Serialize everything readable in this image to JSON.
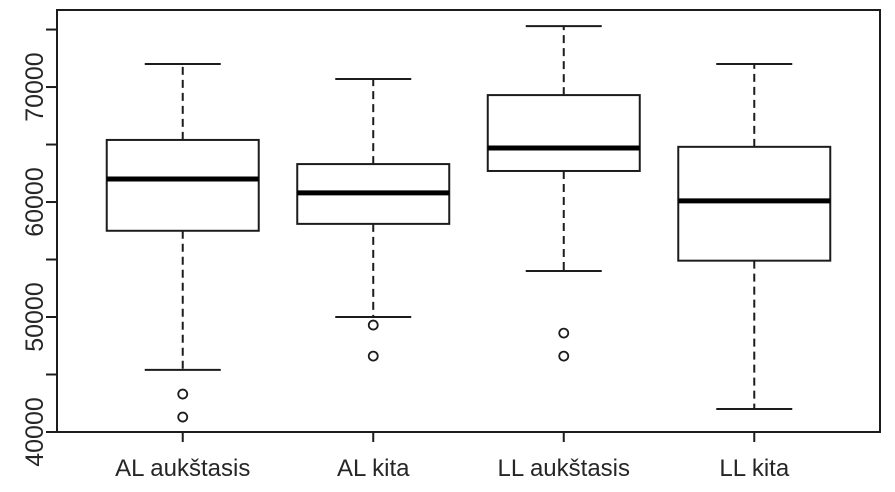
{
  "chart_data": {
    "type": "boxplot",
    "title": "",
    "xlabel": "",
    "ylabel": "",
    "grid": false,
    "legend": false,
    "categories": [
      "AL aukštasis",
      "AL kita",
      "LL aukštasis",
      "LL kita"
    ],
    "series": [
      {
        "name": "AL aukštasis",
        "whisker_low": 45400,
        "q1": 57500,
        "median": 62000,
        "q3": 65400,
        "whisker_high": 72000,
        "outliers": [
          43300,
          41300
        ]
      },
      {
        "name": "AL kita",
        "whisker_low": 50000,
        "q1": 58100,
        "median": 60800,
        "q3": 63300,
        "whisker_high": 70700,
        "outliers": [
          49300,
          46600
        ]
      },
      {
        "name": "LL aukštasis",
        "whisker_low": 54000,
        "q1": 62700,
        "median": 64700,
        "q3": 69300,
        "whisker_high": 75300,
        "outliers": [
          48600,
          46600
        ]
      },
      {
        "name": "LL kita",
        "whisker_low": 42000,
        "q1": 54900,
        "median": 60100,
        "q3": 64800,
        "whisker_high": 72000,
        "outliers": []
      }
    ],
    "y_axis": {
      "min": 40000,
      "max": 76700,
      "tick_step": 5000,
      "ticks": [
        40000,
        45000,
        50000,
        55000,
        60000,
        65000,
        70000,
        75000
      ],
      "labeled_ticks": [
        40000,
        50000,
        60000,
        70000
      ],
      "tick_labels": [
        "40000",
        "50000",
        "60000",
        "70000"
      ]
    },
    "style": {
      "stroke_color": "#1c1c1c",
      "median_color": "#000000",
      "box_fill": "#ffffff",
      "background": "#ffffff",
      "text_color": "#262626"
    }
  }
}
